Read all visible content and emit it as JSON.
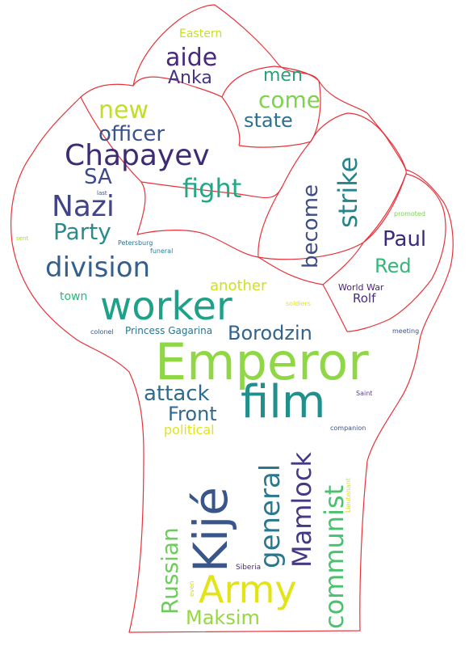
{
  "colors": {
    "background": "#ffffff",
    "outline": "#e8323a"
  },
  "words": [
    {
      "text": "Eastern",
      "color": "#c8e020"
    },
    {
      "text": "aide",
      "color": "#46297f"
    },
    {
      "text": "Anka",
      "color": "#463480"
    },
    {
      "text": "men",
      "color": "#2aa07f"
    },
    {
      "text": "come",
      "color": "#7dd24e"
    },
    {
      "text": "state",
      "color": "#2c718e"
    },
    {
      "text": "new",
      "color": "#c2df23"
    },
    {
      "text": "officer",
      "color": "#3b528b"
    },
    {
      "text": "Chapayev",
      "color": "#3e2b75"
    },
    {
      "text": "SA",
      "color": "#3e4a89"
    },
    {
      "text": "fight",
      "color": "#22a884"
    },
    {
      "text": "Nazi",
      "color": "#414487"
    },
    {
      "text": "Party",
      "color": "#2b8c8a"
    },
    {
      "text": "division",
      "color": "#355f8d"
    },
    {
      "text": "worker",
      "color": "#1fa088"
    },
    {
      "text": "strike",
      "color": "#25858e"
    },
    {
      "text": "become",
      "color": "#3e4c8a"
    },
    {
      "text": "Paul",
      "color": "#3b2a7a"
    },
    {
      "text": "Red",
      "color": "#35b779"
    },
    {
      "text": "World War",
      "color": "#482475"
    },
    {
      "text": "Rolf",
      "color": "#472d7b"
    },
    {
      "text": "promoted",
      "color": "#7ad151"
    },
    {
      "text": "last",
      "color": "#3c4f8a"
    },
    {
      "text": "sent",
      "color": "#a5db36"
    },
    {
      "text": "Petersburg",
      "color": "#2d708e"
    },
    {
      "text": "funeral",
      "color": "#287c8e"
    },
    {
      "text": "another",
      "color": "#d0e11c"
    },
    {
      "text": "soldiers",
      "color": "#e5e419"
    },
    {
      "text": "town",
      "color": "#2fb47c"
    },
    {
      "text": "colonel",
      "color": "#38598c"
    },
    {
      "text": "Princess Gagarina",
      "color": "#2b748e"
    },
    {
      "text": "Borodzin",
      "color": "#33638d"
    },
    {
      "text": "meeting",
      "color": "#3a548c"
    },
    {
      "text": "Emperor",
      "color": "#8fd744"
    },
    {
      "text": "attack",
      "color": "#2f6b8e"
    },
    {
      "text": "film",
      "color": "#21908d"
    },
    {
      "text": "Front",
      "color": "#31688e"
    },
    {
      "text": "Saint",
      "color": "#5c3d8f"
    },
    {
      "text": "political",
      "color": "#e2e418"
    },
    {
      "text": "companion",
      "color": "#3b528b"
    },
    {
      "text": "general",
      "color": "#2a788e"
    },
    {
      "text": "Mamlock",
      "color": "#443a83"
    },
    {
      "text": "communist",
      "color": "#4ac16d"
    },
    {
      "text": "Lieutenant",
      "color": "#d8e219"
    },
    {
      "text": "Kijé",
      "color": "#39568c"
    },
    {
      "text": "Russian",
      "color": "#6ccd5a"
    },
    {
      "text": "Siberia",
      "color": "#472c7a"
    },
    {
      "text": "even",
      "color": "#d2e21b"
    },
    {
      "text": "Army",
      "color": "#e3e418"
    },
    {
      "text": "Maksim",
      "color": "#95d840"
    }
  ]
}
